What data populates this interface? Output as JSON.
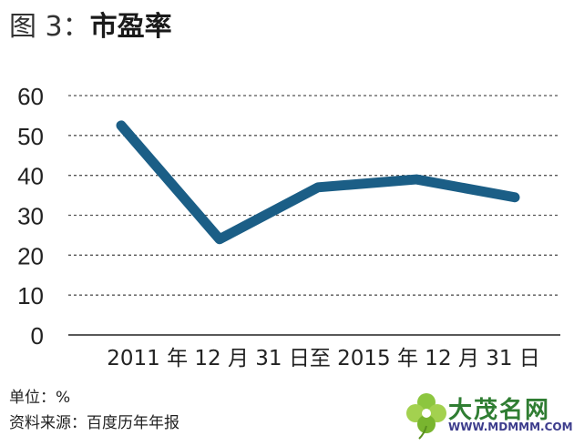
{
  "title": {
    "prefix": "图 3：",
    "main": "市盈率"
  },
  "footer": {
    "unit": "单位：%",
    "source": "资料来源：百度历年年报"
  },
  "watermark": {
    "name": "大茂名网",
    "url": "WWW.MDMMM.COM"
  },
  "colors": {
    "line": "#1b5e86",
    "grid": "#555555",
    "axis": "#222222",
    "text": "#222222",
    "watermark_green": "#2f7d32",
    "watermark_blue": "#3c3c8c"
  },
  "chart_data": {
    "type": "line",
    "title": "市盈率",
    "ylim": [
      0,
      60
    ],
    "yticks": [
      "0",
      "10",
      "20",
      "30",
      "40",
      "50",
      "60"
    ],
    "xlabel": "2011 年 12 月 31 日至 2015 年 12 月 31 日",
    "grid": true,
    "legend": "none",
    "series": [
      {
        "x": [
          "2011-12-31",
          "2012-12-31",
          "2013-12-31",
          "2014-12-31",
          "2015-12-31"
        ],
        "values": [
          52.5,
          24,
          37,
          39,
          34.5
        ]
      }
    ]
  }
}
